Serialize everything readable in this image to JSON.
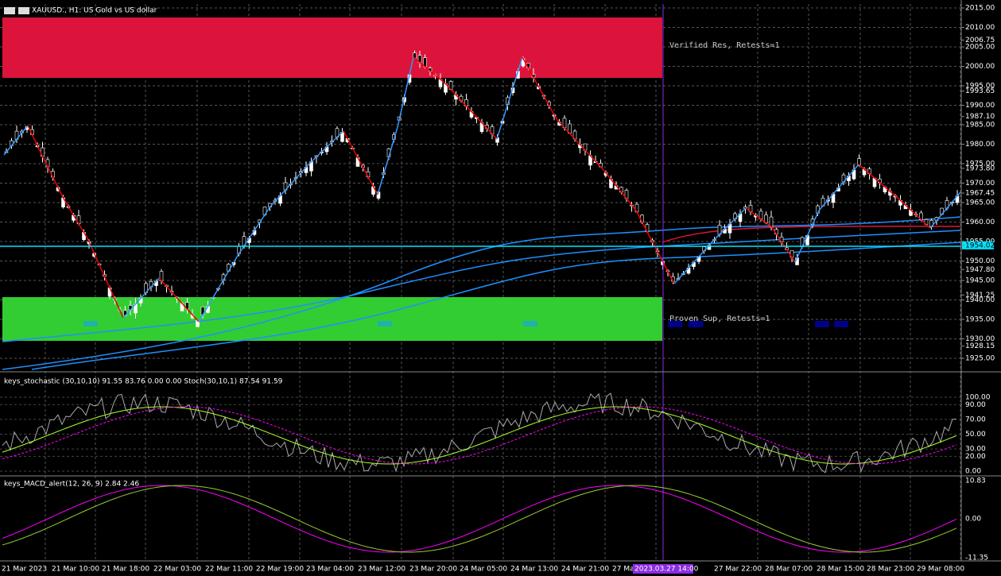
{
  "header": {
    "title": "XAUUSD., H1: US Gold vs US dollar"
  },
  "price_axis": {
    "labels": [
      "2015.00",
      "2010.00",
      "2006.75",
      "2005.00",
      "2000.00",
      "1995.00",
      "1993.65",
      "1990.00",
      "1987.10",
      "1985.00",
      "1980.00",
      "1975.00",
      "1973.80",
      "1970.00",
      "1967.45",
      "1965.00",
      "1960.00",
      "1955.00",
      "1954.02",
      "1950.00",
      "1947.80",
      "1945.00",
      "1941.25",
      "1940.00",
      "1935.00",
      "1930.00",
      "1928.15",
      "1925.00"
    ]
  },
  "zones": {
    "resistance": "Verified Res, Retests=1",
    "support": "Proven Sup, Retests=1"
  },
  "stochastic": {
    "title": "keys_stochastic (30,10,10) 91.55 83.76 0.00 0.00 Stoch(30,10,1) 87.54 91.59",
    "labels": [
      "100.00",
      "90.00",
      "70.00",
      "50.00",
      "30.00",
      "20.00",
      "0.00"
    ]
  },
  "macd": {
    "title": "keys_MACD_alert(12, 26, 9) 2.84 2.46",
    "labels": [
      "10.83",
      "0.00",
      "-11.35"
    ]
  },
  "time_axis": {
    "labels": [
      "21 Mar 2023",
      "21 Mar 10:00",
      "21 Mar 18:00",
      "22 Mar 03:00",
      "22 Mar 11:00",
      "22 Mar 19:00",
      "23 Mar 04:00",
      "23 Mar 12:00",
      "23 Mar 20:00",
      "24 Mar 05:00",
      "24 Mar 13:00",
      "24 Mar 21:00",
      "27 Ma",
      "27 Mar 22:00",
      "28 Mar 07:00",
      "28 Mar 15:00",
      "28 Mar 23:00",
      "29 Mar 08:00"
    ],
    "cursor": "2023.03.27 14:00"
  }
}
